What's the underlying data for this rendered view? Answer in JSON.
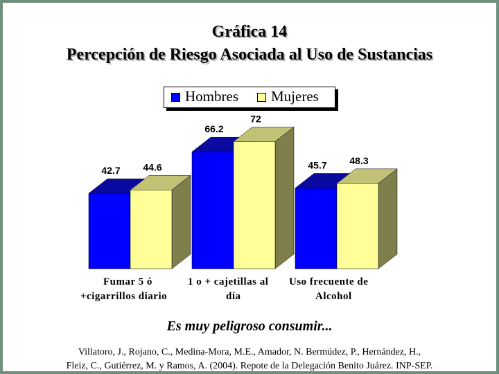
{
  "chart_data": {
    "type": "bar",
    "title": "Gráfica 14",
    "subtitle": "Percepción de Riesgo Asociada al Uso de Sustancias",
    "categories": [
      [
        "Fumar 5 ó",
        "+cigarrillos diario"
      ],
      [
        "1 o + cajetillas al",
        "día"
      ],
      [
        "Uso frecuente de",
        "Alcohol"
      ]
    ],
    "series": [
      {
        "name": "Hombres",
        "values": [
          42.7,
          66.2,
          45.7
        ],
        "labels": [
          "42.7",
          "66.2",
          "45.7"
        ],
        "color": "#0000ff",
        "top_color": "#0a0aa0",
        "side_color": "#00007a"
      },
      {
        "name": "Mujeres",
        "values": [
          44.6,
          72,
          48.3
        ],
        "labels": [
          "44.6",
          "72",
          "48.3"
        ],
        "color": "#ffff99",
        "top_color": "#c2c277",
        "side_color": "#7f7f4c"
      }
    ],
    "legend": "top",
    "grid": false
  },
  "caption": "Es muy peligroso consumir...",
  "reference": [
    "Villatoro, J., Rojano, C., Medina-Mora, M.E., Amador, N. Bermúdez, P., Hernández, H.,",
    "Fleiz, C., Gutiérrez, M. y Ramos, A. (2004). Repote de la Delegación Benito Juárez. INP-SEP."
  ]
}
